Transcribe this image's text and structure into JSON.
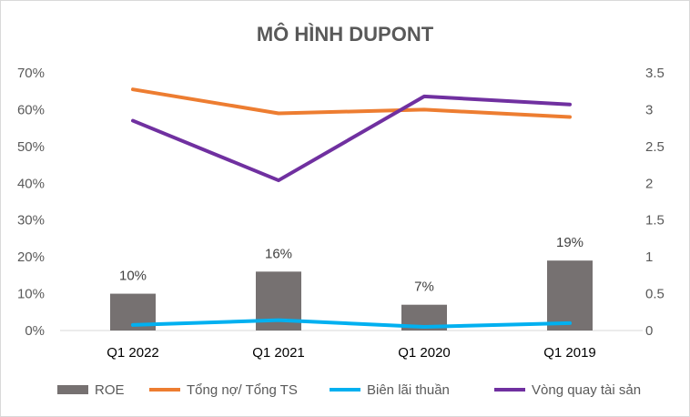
{
  "chart_data": {
    "type": "bar",
    "title": "MÔ HÌNH DUPONT",
    "categories": [
      "Q1 2022",
      "Q1 2021",
      "Q1 2020",
      "Q1 2019"
    ],
    "y_left": {
      "min": 0,
      "max": 0.7,
      "step": 0.1,
      "ticks": [
        "0%",
        "10%",
        "20%",
        "30%",
        "40%",
        "50%",
        "60%",
        "70%"
      ]
    },
    "y_right": {
      "min": 0,
      "max": 3.5,
      "step": 0.5,
      "ticks": [
        "0",
        "0.5",
        "1",
        "1.5",
        "2",
        "2.5",
        "3",
        "3.5"
      ]
    },
    "grid": false,
    "legend_position": "bottom",
    "series": [
      {
        "name": "ROE",
        "type": "bar",
        "axis": "left",
        "color": "#767171",
        "values": [
          0.1,
          0.16,
          0.07,
          0.19
        ],
        "labels": [
          "10%",
          "16%",
          "7%",
          "19%"
        ]
      },
      {
        "name": "Tổng nợ/ Tổng TS",
        "type": "line",
        "axis": "left",
        "color": "#ED7D31",
        "values": [
          0.655,
          0.59,
          0.6,
          0.58
        ]
      },
      {
        "name": "Biên lãi thuần",
        "type": "line",
        "axis": "left",
        "color": "#00B0F0",
        "values": [
          0.015,
          0.028,
          0.01,
          0.02
        ]
      },
      {
        "name": "Vòng quay tài sản",
        "type": "line",
        "axis": "right",
        "color": "#7030A0",
        "values": [
          2.85,
          2.04,
          3.18,
          3.07
        ]
      }
    ]
  }
}
